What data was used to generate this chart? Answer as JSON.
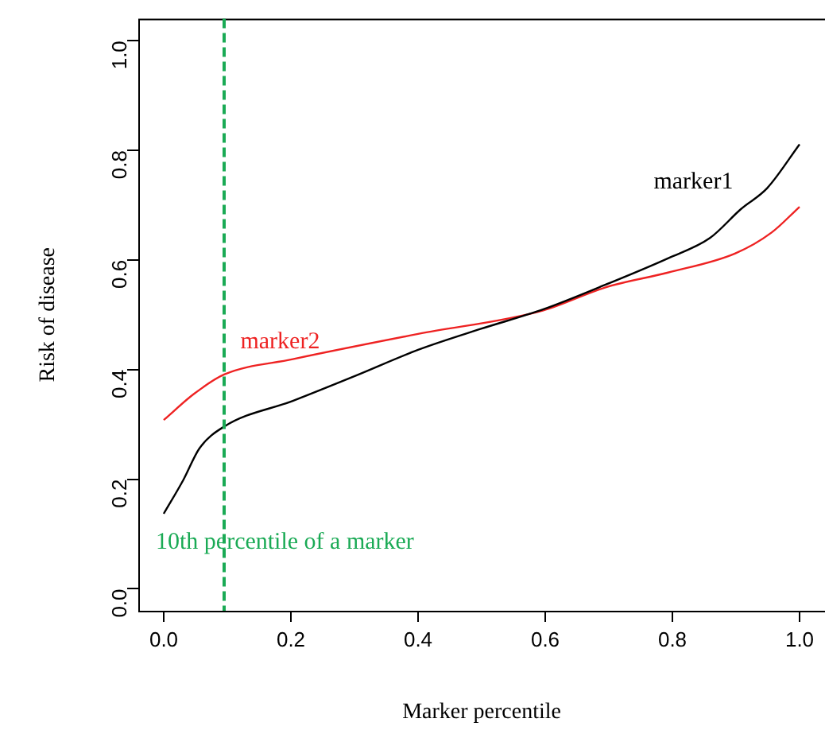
{
  "chart_data": {
    "type": "line",
    "xlabel": "Marker percentile",
    "ylabel": "Risk of disease",
    "xlim": [
      -0.04,
      1.04
    ],
    "xticks": [
      {
        "value": 0,
        "label": "0.0"
      },
      0.2,
      0.4,
      0.6,
      0.8,
      {
        "value": 1,
        "label": "1.0"
      }
    ],
    "ylim": [
      -0.04,
      1.04
    ],
    "yticks": [
      {
        "value": 0,
        "label": "0.0"
      },
      0.2,
      0.4,
      0.6,
      0.8,
      {
        "value": 1,
        "label": "1.0"
      }
    ],
    "grid": false,
    "legend": false,
    "marker": "none",
    "line_style": "solid",
    "series": [
      {
        "name": "marker1",
        "color": "#000000",
        "x": [
          0,
          0.031,
          0.056,
          0.095,
          0.203,
          0.302,
          0.4,
          0.498,
          0.597,
          0.695,
          0.793,
          0.859,
          0.908,
          0.949,
          1
        ],
        "values": [
          0.137,
          0.199,
          0.256,
          0.296,
          0.343,
          0.389,
          0.436,
          0.474,
          0.51,
          0.555,
          0.603,
          0.64,
          0.693,
          0.731,
          0.811
        ]
      },
      {
        "name": "marker2",
        "color": "#ee2222",
        "x": [
          0,
          0.048,
          0.095,
          0.203,
          0.4,
          0.597,
          0.695,
          0.793,
          0.899,
          0.956,
          1
        ],
        "values": [
          0.308,
          0.356,
          0.391,
          0.419,
          0.465,
          0.508,
          0.55,
          0.577,
          0.612,
          0.65,
          0.697
        ]
      }
    ],
    "ref_lines": [
      {
        "axis": "x",
        "value": 0.095,
        "label": "10th percentile of a marker",
        "color": "#1aaa55",
        "line_style": "dashed"
      }
    ]
  }
}
